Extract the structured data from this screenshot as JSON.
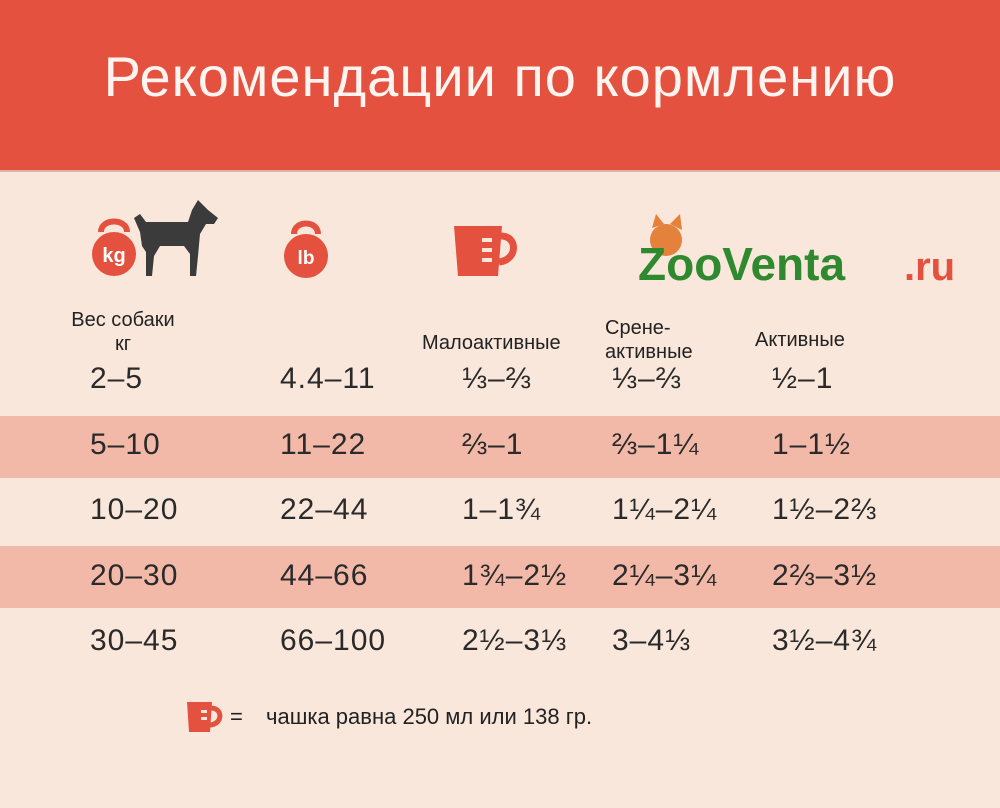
{
  "header": {
    "title": "Рекомендации по кормлению"
  },
  "icons": {
    "weight_kg_label": "kg",
    "weight_lb_label": "lb"
  },
  "columns": {
    "weight_kg": "Вес собаки\nкг",
    "low": "Малоактивные",
    "medium": "Срене-\nактивные",
    "active": "Активные"
  },
  "rows": [
    {
      "kg": "2–5",
      "lb": "4.4–11",
      "low": "⅓–⅔",
      "medium": "⅓–⅔",
      "active": "½–1"
    },
    {
      "kg": "5–10",
      "lb": "11–22",
      "low": "⅔–1",
      "medium": "⅔–1¼",
      "active": "1–1½"
    },
    {
      "kg": "10–20",
      "lb": "22–44",
      "low": "1–1¾",
      "medium": "1¼–2¼",
      "active": "1½–2⅔"
    },
    {
      "kg": "20–30",
      "lb": "44–66",
      "low": "1¾–2½",
      "medium": "2¼–3¼",
      "active": "2⅔–3½"
    },
    {
      "kg": "30–45",
      "lb": "66–100",
      "low": "2½–3⅓",
      "medium": "3–4⅓",
      "active": "3½–4¾"
    }
  ],
  "logo": {
    "text_main": "ZooVenta",
    "text_suffix": ".ru"
  },
  "footer": {
    "eq": "=",
    "text": "чашка равна 250 мл или 138 гр."
  },
  "colors": {
    "accent": "#e4513f",
    "band": "#f2b8a8",
    "background": "#fae7dc"
  }
}
